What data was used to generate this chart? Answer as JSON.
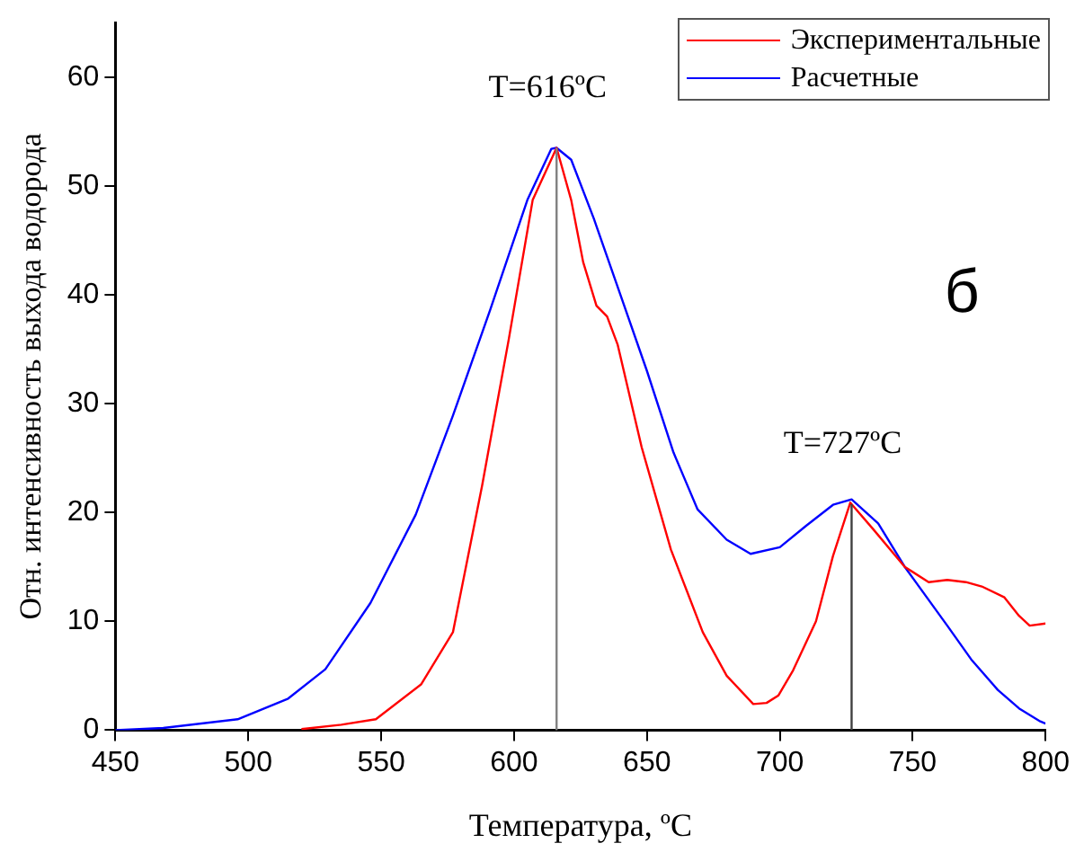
{
  "chart_data": {
    "type": "line",
    "xlabel": "Температура, ºC",
    "ylabel": "Отн. интенсивность выхода водорода",
    "xlim": [
      450,
      800
    ],
    "ylim": [
      0,
      65
    ],
    "xticks": [
      450,
      500,
      550,
      600,
      650,
      700,
      750,
      800
    ],
    "yticks": [
      0,
      10,
      20,
      30,
      40,
      50,
      60
    ],
    "grid": false,
    "legend": "top right",
    "marker": "none",
    "line_style": "solid",
    "series": [
      {
        "name": "Экспериментальные",
        "color": "#ff0000",
        "x": [
          520,
          535,
          548,
          565,
          577,
          588,
          598,
          607,
          616,
          621.5,
          626,
          631,
          635,
          639,
          648,
          659,
          671,
          680,
          690,
          695,
          699.5,
          705,
          713.6,
          720,
          726.5,
          735,
          747,
          756,
          763,
          770,
          776,
          784.5,
          790,
          794,
          800
        ],
        "values": [
          0.1,
          0.5,
          1,
          4.2,
          9,
          22.5,
          35.9,
          48.7,
          53.5,
          48.7,
          43,
          39,
          38,
          35.4,
          26,
          16.6,
          9,
          5,
          2.4,
          2.5,
          3.2,
          5.5,
          10,
          16,
          20.9,
          18.5,
          15,
          13.6,
          13.8,
          13.6,
          13.2,
          12.2,
          10.5,
          9.6,
          9.8
        ]
      },
      {
        "name": "Расчетные",
        "color": "#0000ff",
        "x": [
          450,
          468,
          496,
          515,
          529,
          546,
          563,
          577,
          591,
          605,
          614,
          616,
          621.5,
          630,
          640,
          650,
          660,
          669,
          680,
          689,
          700,
          710,
          720,
          727,
          737,
          747,
          763,
          772,
          782,
          790,
          798,
          800
        ],
        "values": [
          0,
          0.2,
          1,
          2.9,
          5.6,
          11.7,
          19.8,
          28.9,
          38.6,
          48.7,
          53.4,
          53.5,
          52.4,
          47,
          40,
          33,
          25.5,
          20.3,
          17.5,
          16.2,
          16.8,
          18.8,
          20.7,
          21.2,
          19,
          15,
          9.6,
          6.5,
          3.7,
          2,
          0.8,
          0.6
        ]
      }
    ],
    "ref_lines": [
      {
        "axis": "x",
        "value": 616,
        "label": "T=616ºC",
        "color": "#808080"
      },
      {
        "axis": "x",
        "value": 727,
        "label": "T=727ºC",
        "color": "#404040"
      }
    ],
    "annotations": [
      "б"
    ]
  }
}
